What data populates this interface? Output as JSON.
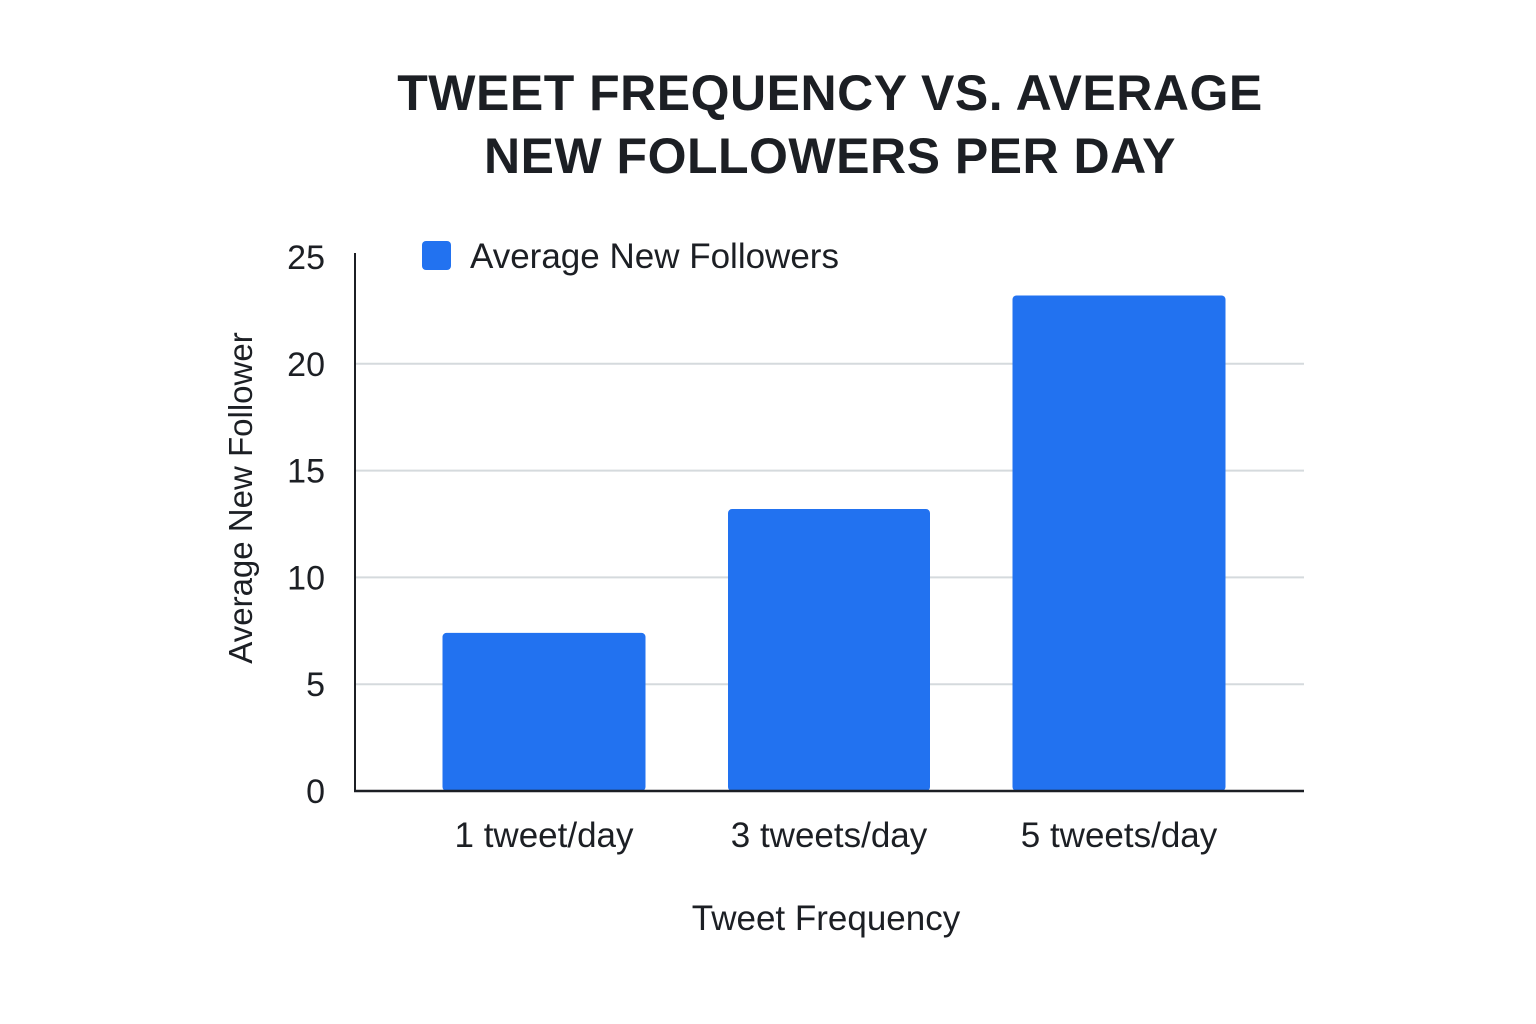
{
  "chart_data": {
    "type": "bar",
    "title_lines": [
      "TWEET FREQUENCY VS. AVERAGE",
      "NEW FOLLOWERS PER DAY"
    ],
    "categories": [
      "1 tweet/day",
      "3 tweets/day",
      "5 tweets/day"
    ],
    "series": [
      {
        "name": "Average New Followers",
        "values": [
          7.4,
          13.2,
          23.2
        ],
        "color": "#2272f0"
      }
    ],
    "xlabel": "Tweet Frequency",
    "ylabel": "Average New Follower",
    "ylim": [
      0,
      25
    ],
    "yticks": [
      "0",
      "5",
      "10",
      "15",
      "20",
      "25"
    ],
    "grid": true,
    "legend_position": "top-left",
    "gridline_color": "#d5dadd",
    "axis_color": "#1c1f24"
  }
}
